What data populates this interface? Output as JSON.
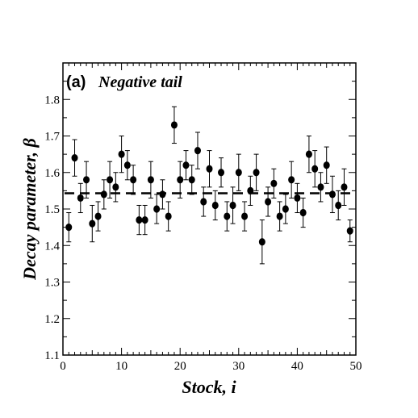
{
  "chart_data": {
    "type": "scatter",
    "panel_label": "(a)",
    "title": "Negative tail",
    "xlabel": "Stock, i",
    "ylabel": "Decay parameter, β",
    "xlim": [
      0,
      50
    ],
    "ylim": [
      1.1,
      1.9
    ],
    "xticks": [
      0,
      10,
      20,
      30,
      40,
      50
    ],
    "yticks": [
      1.1,
      1.2,
      1.3,
      1.4,
      1.5,
      1.6,
      1.7,
      1.8
    ],
    "reference_line": {
      "y": 1.543,
      "style": "dashed"
    },
    "grid": false,
    "legend": false,
    "marker_color": "#000000",
    "series": [
      {
        "x": [
          1,
          2,
          3,
          4,
          5,
          6,
          7,
          8,
          9,
          10,
          11,
          12,
          13,
          14,
          15,
          16,
          17,
          18,
          19,
          20,
          21,
          22,
          23,
          24,
          25,
          26,
          27,
          28,
          29,
          30,
          31,
          32,
          33,
          34,
          35,
          36,
          37,
          38,
          39,
          40,
          41,
          42,
          43,
          44,
          45,
          46,
          47,
          48,
          49
        ],
        "y": [
          1.45,
          1.64,
          1.53,
          1.58,
          1.46,
          1.48,
          1.54,
          1.58,
          1.56,
          1.65,
          1.62,
          1.58,
          1.47,
          1.47,
          1.58,
          1.5,
          1.54,
          1.48,
          1.73,
          1.58,
          1.62,
          1.58,
          1.66,
          1.52,
          1.61,
          1.51,
          1.6,
          1.48,
          1.51,
          1.6,
          1.48,
          1.55,
          1.6,
          1.41,
          1.52,
          1.57,
          1.48,
          1.5,
          1.58,
          1.53,
          1.49,
          1.65,
          1.61,
          1.56,
          1.62,
          1.54,
          1.51,
          1.56,
          1.44
        ],
        "yerr": [
          0.04,
          0.05,
          0.04,
          0.05,
          0.05,
          0.04,
          0.04,
          0.05,
          0.04,
          0.05,
          0.04,
          0.04,
          0.04,
          0.04,
          0.05,
          0.04,
          0.04,
          0.04,
          0.05,
          0.05,
          0.04,
          0.04,
          0.05,
          0.04,
          0.05,
          0.04,
          0.04,
          0.04,
          0.05,
          0.05,
          0.04,
          0.04,
          0.05,
          0.06,
          0.04,
          0.04,
          0.04,
          0.04,
          0.05,
          0.04,
          0.04,
          0.05,
          0.05,
          0.04,
          0.05,
          0.05,
          0.04,
          0.05,
          0.03
        ]
      }
    ]
  }
}
